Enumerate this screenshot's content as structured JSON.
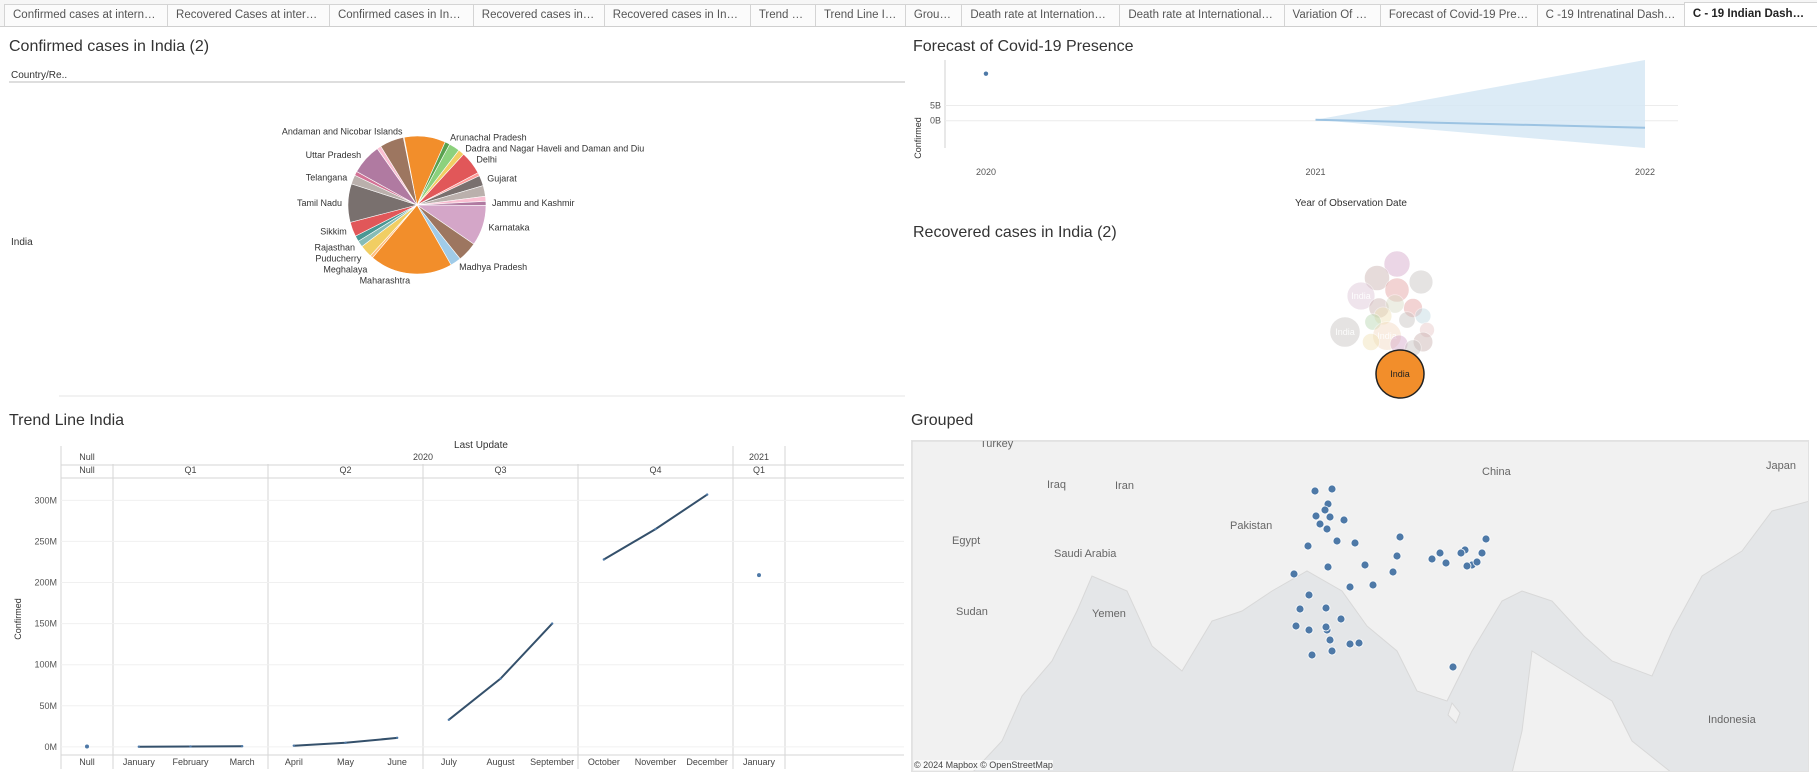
{
  "tabs": [
    {
      "label": "Confirmed cases at internation...",
      "active": false
    },
    {
      "label": "Recovered Cases at internatio...",
      "active": false
    },
    {
      "label": "Confirmed cases in India (2)",
      "active": false
    },
    {
      "label": "Recovered cases in India",
      "active": false
    },
    {
      "label": "Recovered cases in India (2)",
      "active": false
    },
    {
      "label": "Trend Line",
      "active": false
    },
    {
      "label": "Trend Line India",
      "active": false
    },
    {
      "label": "Grouped",
      "active": false
    },
    {
      "label": "Death rate at International level",
      "active": false
    },
    {
      "label": "Death rate at International leve...",
      "active": false
    },
    {
      "label": "Variation Of covid",
      "active": false
    },
    {
      "label": "Forecast of Covid-19 Presence",
      "active": false
    },
    {
      "label": "C -19 Intrenatinal Dashboard",
      "active": false
    },
    {
      "label": "C - 19 Indian Dashboard",
      "active": true
    }
  ],
  "pie_panel": {
    "title": "Confirmed cases in India (2)",
    "header_label": "Country/Re..",
    "row_label": "India",
    "chart_data": {
      "type": "pie",
      "slices": [
        {
          "label": "Andaman and Nicobar Islands",
          "value": 0.2,
          "color": "#f28e2b"
        },
        {
          "label": "",
          "value": 10.0,
          "color": "#f28e2b"
        },
        {
          "label": "Arunachal Pradesh",
          "value": 1.2,
          "color": "#59a14f"
        },
        {
          "label": "",
          "value": 2.6,
          "color": "#8cd17d"
        },
        {
          "label": "Dadra and Nagar Haveli and Daman and Diu",
          "value": 1.5,
          "color": "#f1ce63"
        },
        {
          "label": "Delhi",
          "value": 5.6,
          "color": "#e15759"
        },
        {
          "label": "",
          "value": 0.8,
          "color": "#ff9d9a"
        },
        {
          "label": "Gujarat",
          "value": 2.5,
          "color": "#79706e"
        },
        {
          "label": "",
          "value": 2.6,
          "color": "#bab0ac"
        },
        {
          "label": "",
          "value": 1.2,
          "color": "#fabfd2"
        },
        {
          "label": "Jammu and Kashmir",
          "value": 1.0,
          "color": "#b07aa1"
        },
        {
          "label": "Karnataka",
          "value": 9.8,
          "color": "#d4a6c8"
        },
        {
          "label": "",
          "value": 4.8,
          "color": "#9d7660"
        },
        {
          "label": "Madhya Pradesh",
          "value": 2.6,
          "color": "#a0cbe8"
        },
        {
          "label": "Maharashtra",
          "value": 20.0,
          "color": "#f28e2b"
        },
        {
          "label": "Meghalaya",
          "value": 0.7,
          "color": "#ffbe7d"
        },
        {
          "label": "Puducherry",
          "value": 3.0,
          "color": "#f1ce63"
        },
        {
          "label": "Rajasthan",
          "value": 1.5,
          "color": "#86bcb6"
        },
        {
          "label": "",
          "value": 1.4,
          "color": "#499894"
        },
        {
          "label": "Sikkim",
          "value": 3.5,
          "color": "#e15759"
        },
        {
          "label": "Tamil Nadu",
          "value": 9.3,
          "color": "#79706e"
        },
        {
          "label": "Telangana",
          "value": 2.2,
          "color": "#bab0ac"
        },
        {
          "label": "",
          "value": 1.0,
          "color": "#d37295"
        },
        {
          "label": "Uttar Pradesh",
          "value": 7.4,
          "color": "#b07aa1"
        },
        {
          "label": "",
          "value": 1.0,
          "color": "#fabfd2"
        },
        {
          "label": "",
          "value": 5.8,
          "color": "#9d7660"
        }
      ]
    }
  },
  "forecast_panel": {
    "title": "Forecast of Covid-19 Presence",
    "chart_data": {
      "type": "line",
      "xlabel": "Year of Observation Date",
      "ylabel": "Confirmed",
      "x_ticks": [
        "2020",
        "2021",
        "2022"
      ],
      "y_ticks": [
        {
          "label": "5B",
          "value": 5
        },
        {
          "label": "0B",
          "value": 0
        }
      ],
      "ylim": [
        -9,
        20
      ],
      "actual_point": {
        "x": 2020.0,
        "y": 15.5
      },
      "forecast": {
        "x": [
          2021.0,
          2022.0
        ],
        "y": [
          0.3,
          -2.3
        ]
      },
      "band_upper": {
        "x": [
          2021.0,
          2022.0
        ],
        "y": [
          0.3,
          20
        ]
      },
      "band_lower": {
        "x": [
          2021.0,
          2022.0
        ],
        "y": [
          0.3,
          -9
        ]
      }
    }
  },
  "bubble_panel": {
    "title": "Recovered cases in India (2)",
    "chart_data": {
      "type": "bubble",
      "bubbles": [
        {
          "label": "",
          "value": 30,
          "color": "#d4a6c8"
        },
        {
          "label": "",
          "value": 28,
          "color": "#c9b0ae"
        },
        {
          "label": "",
          "value": 26,
          "color": "#e3a0a0"
        },
        {
          "label": "",
          "value": 25,
          "color": "#c7c2c0"
        },
        {
          "label": "India",
          "value": 34,
          "color": "#dcc4d6"
        },
        {
          "label": "",
          "value": 18,
          "color": "#c9b0ae"
        },
        {
          "label": "",
          "value": 16,
          "color": "#e3a0a0"
        },
        {
          "label": "",
          "value": 15,
          "color": "#d8dbc4"
        },
        {
          "label": "",
          "value": 14,
          "color": "#f0e2b5"
        },
        {
          "label": "",
          "value": 12,
          "color": "#b7d6b0"
        },
        {
          "label": "",
          "value": 12,
          "color": "#c7c2c0"
        },
        {
          "label": "",
          "value": 11,
          "color": "#bfd9e2"
        },
        {
          "label": "",
          "value": 10,
          "color": "#e8c7c7"
        },
        {
          "label": "India",
          "value": 40,
          "color": "#c7c2c0"
        },
        {
          "label": "India",
          "value": 36,
          "color": "#f3d9c0"
        },
        {
          "label": "",
          "value": 17,
          "color": "#c9b0ae"
        },
        {
          "label": "",
          "value": 14,
          "color": "#d4a6c8"
        },
        {
          "label": "",
          "value": 13,
          "color": "#f0e2b5"
        },
        {
          "label": "",
          "value": 12,
          "color": "#c7c2c0"
        },
        {
          "label": "India",
          "value": 100,
          "color": "#f28e2b",
          "highlighted": true
        }
      ]
    }
  },
  "trend_panel": {
    "title": "Trend Line India",
    "chart_data": {
      "type": "line",
      "header_title": "Last Update",
      "ylabel": "Confirmed",
      "y_ticks": [
        {
          "label": "300M",
          "value": 300
        },
        {
          "label": "250M",
          "value": 250
        },
        {
          "label": "200M",
          "value": 200
        },
        {
          "label": "150M",
          "value": 150
        },
        {
          "label": "100M",
          "value": 100
        },
        {
          "label": "50M",
          "value": 50
        },
        {
          "label": "0M",
          "value": 0
        }
      ],
      "ylim": [
        -5,
        315
      ],
      "year_groups": [
        {
          "label": "Null",
          "quarters": [
            {
              "label": "Null",
              "months": [
                "Null"
              ]
            }
          ]
        },
        {
          "label": "2020",
          "quarters": [
            {
              "label": "Q1",
              "months": [
                "January",
                "February",
                "March"
              ]
            },
            {
              "label": "Q2",
              "months": [
                "April",
                "May",
                "June"
              ]
            },
            {
              "label": "Q3",
              "months": [
                "July",
                "August",
                "September"
              ]
            },
            {
              "label": "Q4",
              "months": [
                "October",
                "November",
                "December"
              ]
            }
          ]
        },
        {
          "label": "2021",
          "quarters": [
            {
              "label": "Q1",
              "months": [
                "January"
              ]
            }
          ]
        }
      ],
      "series": [
        {
          "name": "",
          "values": [
            0.5,
            0.2,
            0.5,
            0.8,
            1.5,
            5,
            11,
            33,
            83,
            150,
            228,
            265,
            307,
            209
          ]
        }
      ]
    }
  },
  "map_panel": {
    "title": "Grouped",
    "attribution": "© 2024 Mapbox  © OpenStreetMap",
    "labels": [
      {
        "text": "Turkey"
      },
      {
        "text": "Iraq"
      },
      {
        "text": "Iran"
      },
      {
        "text": "Pakistan"
      },
      {
        "text": "Egypt"
      },
      {
        "text": "Saudi Arabia"
      },
      {
        "text": "Sudan"
      },
      {
        "text": "Yemen"
      },
      {
        "text": "China"
      },
      {
        "text": "Japan"
      },
      {
        "text": "Indonesia"
      }
    ],
    "points_count": 44,
    "point_color": "#4e79a7"
  }
}
